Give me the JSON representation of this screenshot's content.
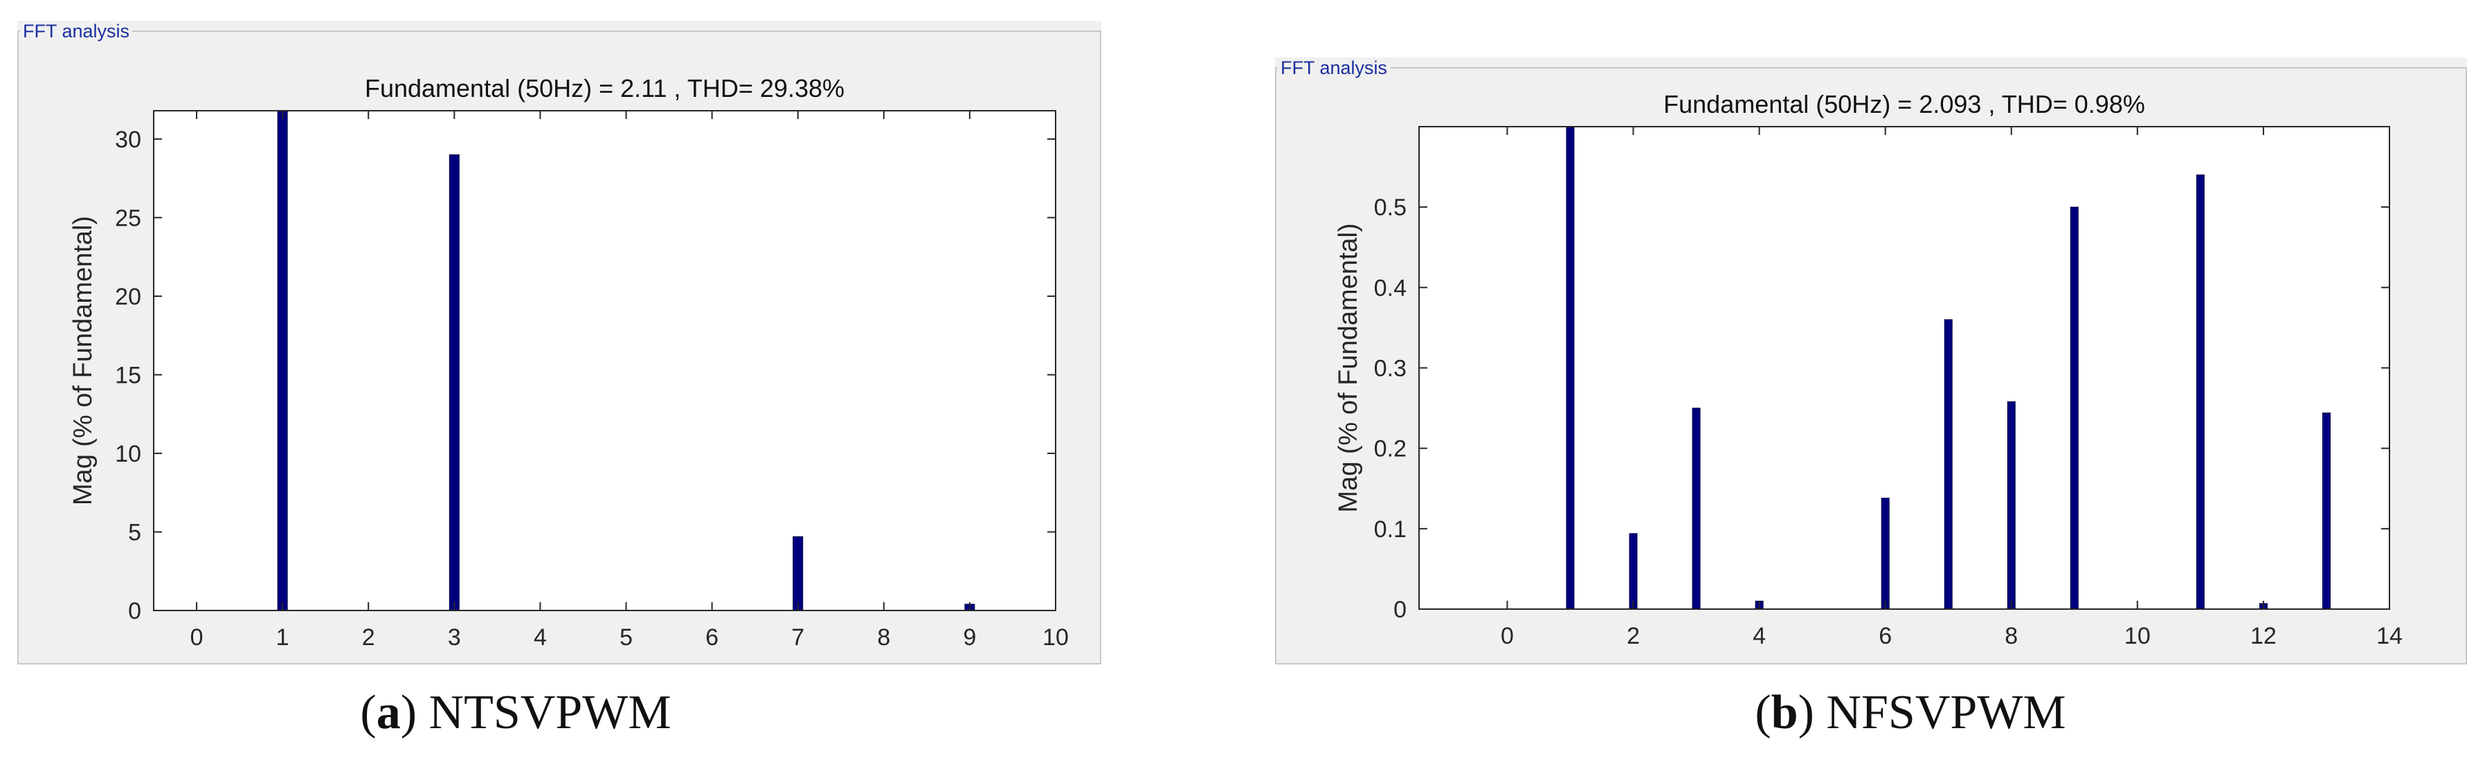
{
  "panels": [
    {
      "label": "FFT analysis",
      "caption_letter": "a",
      "caption_text": "NTSVPWM"
    },
    {
      "label": "FFT analysis",
      "caption_letter": "b",
      "caption_text": "NFSVPWM"
    }
  ],
  "colors": {
    "bar": "#00007f",
    "panel_bg": "#f0f0f0",
    "plot_bg": "#ffffff",
    "label": "#1c2fa0"
  },
  "chart_data": [
    {
      "type": "bar",
      "title": "Fundamental (50Hz) = 2.11 , THD= 29.38%",
      "xlabel": "",
      "ylabel": "Mag (% of Fundamental)",
      "xlim": [
        -0.5,
        10
      ],
      "ylim": [
        0,
        31.8
      ],
      "xticks": [
        0,
        1,
        2,
        3,
        4,
        5,
        6,
        7,
        8,
        9,
        10
      ],
      "yticks": [
        0,
        5,
        10,
        15,
        20,
        25,
        30
      ],
      "grid": false,
      "x": [
        1,
        3,
        7,
        9
      ],
      "values": [
        31.8,
        29.0,
        4.7,
        0.4
      ]
    },
    {
      "type": "bar",
      "title": "Fundamental (50Hz) = 2.093 , THD= 0.98%",
      "xlabel": "",
      "ylabel": "Mag (% of Fundamental)",
      "xlim": [
        -1.4,
        14
      ],
      "ylim": [
        0,
        0.6
      ],
      "xticks": [
        0,
        2,
        4,
        6,
        8,
        10,
        12,
        14
      ],
      "yticks": [
        0,
        0.1,
        0.2,
        0.3,
        0.4,
        0.5
      ],
      "grid": false,
      "x": [
        1,
        2,
        3,
        4,
        6,
        7,
        8,
        9,
        11,
        12,
        13
      ],
      "values": [
        0.6,
        0.094,
        0.25,
        0.01,
        0.138,
        0.36,
        0.258,
        0.5,
        0.54,
        0.007,
        0.244
      ]
    }
  ]
}
